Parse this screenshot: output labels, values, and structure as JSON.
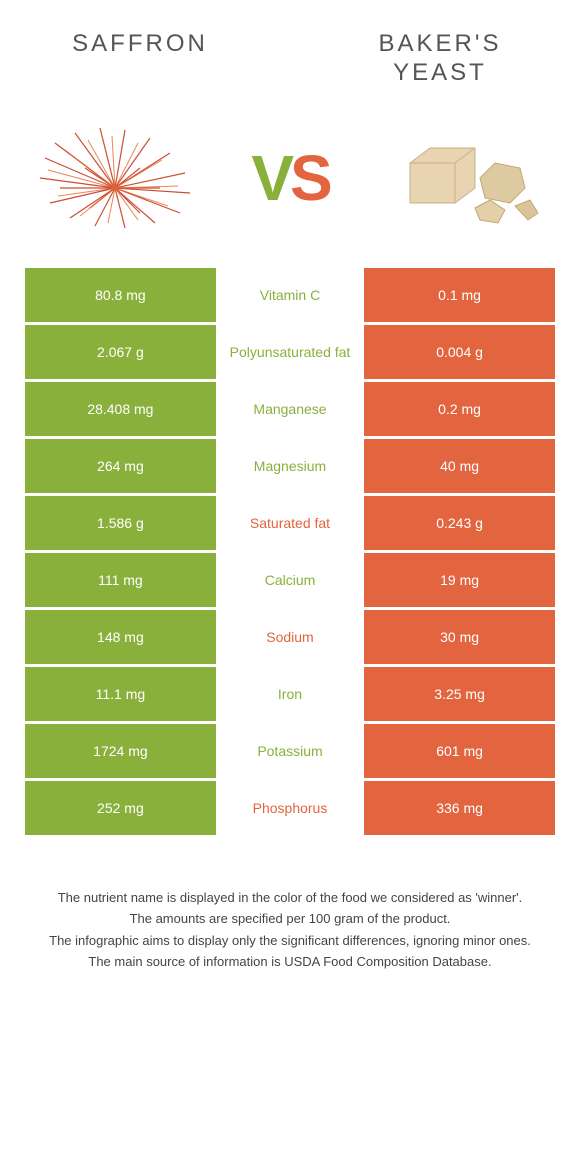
{
  "colors": {
    "green": "#8ab03c",
    "orange": "#e2653f",
    "title": "#555555",
    "note": "#444444",
    "bg": "#ffffff"
  },
  "foods": {
    "left": {
      "name": "SAFFRON",
      "color": "#8ab03c"
    },
    "right": {
      "name": "BAKER'S YEAST",
      "color": "#e2653f"
    }
  },
  "vs": {
    "v": "V",
    "s": "S"
  },
  "rows": [
    {
      "left": "80.8 mg",
      "label": "Vitamin C",
      "right": "0.1 mg",
      "winner": "left"
    },
    {
      "left": "2.067 g",
      "label": "Polyunsaturated fat",
      "right": "0.004 g",
      "winner": "left"
    },
    {
      "left": "28.408 mg",
      "label": "Manganese",
      "right": "0.2 mg",
      "winner": "left"
    },
    {
      "left": "264 mg",
      "label": "Magnesium",
      "right": "40 mg",
      "winner": "left"
    },
    {
      "left": "1.586 g",
      "label": "Saturated fat",
      "right": "0.243 g",
      "winner": "right"
    },
    {
      "left": "111 mg",
      "label": "Calcium",
      "right": "19 mg",
      "winner": "left"
    },
    {
      "left": "148 mg",
      "label": "Sodium",
      "right": "30 mg",
      "winner": "right"
    },
    {
      "left": "11.1 mg",
      "label": "Iron",
      "right": "3.25 mg",
      "winner": "left"
    },
    {
      "left": "1724 mg",
      "label": "Potassium",
      "right": "601 mg",
      "winner": "left"
    },
    {
      "left": "252 mg",
      "label": "Phosphorus",
      "right": "336 mg",
      "winner": "right"
    }
  ],
  "notes": [
    "The nutrient name is displayed in the color of the food we considered as 'winner'.",
    "The amounts are specified per 100 gram of the product.",
    "The infographic aims to display only the significant differences, ignoring minor ones.",
    "The main source of information is USDA Food Composition Database."
  ]
}
